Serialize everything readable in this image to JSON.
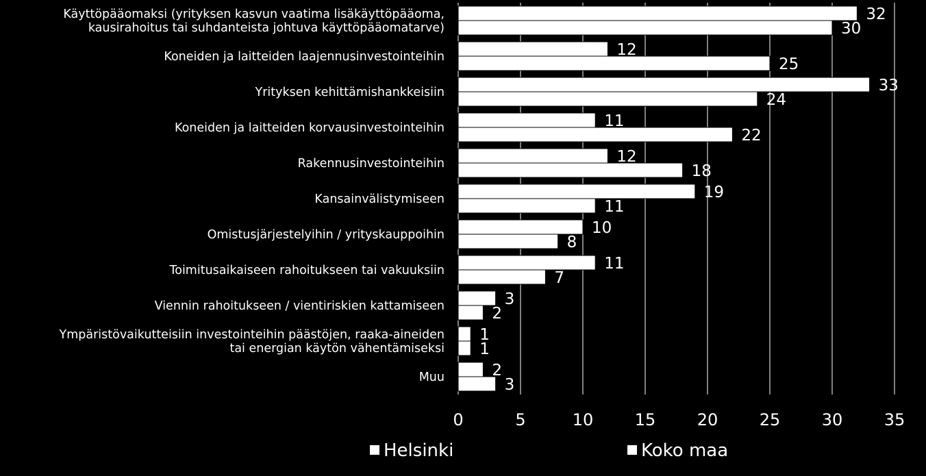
{
  "colors": {
    "background": "#000000",
    "bar_fill": "#ffffff",
    "bar_stroke": "#000000",
    "gridline": "#ffffff",
    "text": "#ffffff"
  },
  "chart_data": {
    "type": "bar",
    "orientation": "horizontal",
    "categories": [
      [
        "Käyttöpääomaksi (yrityksen kasvun vaatima lisäkäyttöpääoma,",
        "kausirahoitus tai suhdanteista johtuva käyttöpääomatarve)"
      ],
      [
        "Koneiden ja laitteiden laajennusinvestointeihin"
      ],
      [
        "Yrityksen kehittämishankkeisiin"
      ],
      [
        "Koneiden ja laitteiden korvausinvestointeihin"
      ],
      [
        "Rakennusinvestointeihin"
      ],
      [
        "Kansainvälistymiseen"
      ],
      [
        "Omistusjärjestelyihin / yrityskauppoihin"
      ],
      [
        "Toimitusaikaiseen rahoitukseen tai vakuuksiin"
      ],
      [
        "Viennin rahoitukseen / vientiriskien kattamiseen"
      ],
      [
        "Ympäristövaikutteisiin investointeihin päästöjen, raaka-aineiden",
        "tai energian käytön vähentämiseksi"
      ],
      [
        "Muu"
      ]
    ],
    "series": [
      {
        "name": "Helsinki",
        "values": [
          32,
          12,
          33,
          11,
          12,
          19,
          10,
          11,
          3,
          1,
          2
        ]
      },
      {
        "name": "Koko maa",
        "values": [
          30,
          25,
          24,
          22,
          18,
          11,
          8,
          7,
          2,
          1,
          3
        ]
      }
    ],
    "xlim": [
      0,
      35
    ],
    "xticks": [
      "0",
      "5",
      "10",
      "15",
      "20",
      "25",
      "30",
      "35"
    ],
    "grid": true,
    "legend_position": "bottom"
  }
}
